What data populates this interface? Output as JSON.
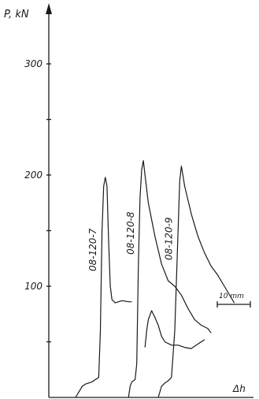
{
  "chart_data": {
    "type": "line",
    "ylabel": "P, kN",
    "xlabel": "Δh",
    "ylim": [
      0,
      340
    ],
    "yticks": [
      {
        "value": 50,
        "label": ""
      },
      {
        "value": 100,
        "label": "100"
      },
      {
        "value": 150,
        "label": ""
      },
      {
        "value": 200,
        "label": "200"
      },
      {
        "value": 250,
        "label": ""
      },
      {
        "value": 300,
        "label": "300"
      }
    ],
    "scale_bar": {
      "label": "10 mm",
      "length_mm": 10
    },
    "series": [
      {
        "name": "08-120-7",
        "points": [
          [
            0,
            0
          ],
          [
            1,
            5
          ],
          [
            2,
            10
          ],
          [
            3,
            12
          ],
          [
            4,
            13
          ],
          [
            5,
            14
          ],
          [
            6,
            16
          ],
          [
            7,
            18
          ],
          [
            7.5,
            60
          ],
          [
            8,
            150
          ],
          [
            8.5,
            190
          ],
          [
            9,
            198
          ],
          [
            9.5,
            190
          ],
          [
            10,
            140
          ],
          [
            10.5,
            100
          ],
          [
            11,
            88
          ],
          [
            12,
            85
          ],
          [
            14,
            87
          ],
          [
            16,
            86
          ],
          [
            17,
            86
          ]
        ]
      },
      {
        "name": "08-120-8",
        "points": [
          [
            16,
            0
          ],
          [
            16.5,
            10
          ],
          [
            17,
            14
          ],
          [
            18,
            16
          ],
          [
            18.5,
            30
          ],
          [
            19,
            120
          ],
          [
            19.5,
            180
          ],
          [
            20,
            205
          ],
          [
            20.5,
            213
          ],
          [
            21,
            200
          ],
          [
            22,
            175
          ],
          [
            24,
            145
          ],
          [
            26,
            120
          ],
          [
            28,
            105
          ],
          [
            30,
            100
          ],
          [
            32,
            92
          ],
          [
            34,
            80
          ],
          [
            36,
            70
          ],
          [
            38,
            65
          ],
          [
            40,
            62
          ],
          [
            41,
            58
          ]
        ]
      },
      {
        "name": "08-120-9",
        "points": [
          [
            25,
            0
          ],
          [
            26,
            10
          ],
          [
            27,
            13
          ],
          [
            28,
            15
          ],
          [
            29,
            18
          ],
          [
            30,
            60
          ],
          [
            31,
            150
          ],
          [
            31.5,
            195
          ],
          [
            32,
            208
          ],
          [
            33,
            190
          ],
          [
            35,
            165
          ],
          [
            37,
            145
          ],
          [
            39,
            130
          ],
          [
            41,
            118
          ],
          [
            43,
            110
          ],
          [
            45,
            100
          ],
          [
            47,
            90
          ],
          [
            48,
            85
          ]
        ]
      },
      {
        "name": "",
        "points": [
          [
            21,
            45
          ],
          [
            21.5,
            60
          ],
          [
            22,
            70
          ],
          [
            23,
            78
          ],
          [
            24,
            72
          ],
          [
            25,
            65
          ],
          [
            26,
            55
          ],
          [
            27,
            50
          ],
          [
            29,
            47
          ],
          [
            31,
            47
          ],
          [
            33,
            45
          ],
          [
            35,
            44
          ],
          [
            37,
            48
          ],
          [
            38,
            50
          ],
          [
            39,
            52
          ]
        ]
      }
    ]
  }
}
